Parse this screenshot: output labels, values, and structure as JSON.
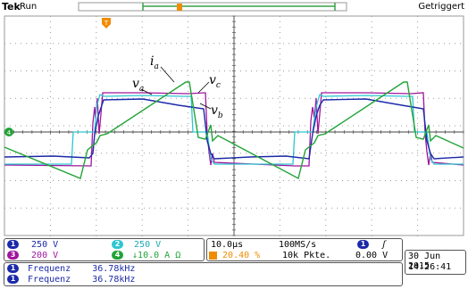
{
  "header": {
    "brand": "Tek",
    "run_state": "Run",
    "trigger_state": "Getriggert"
  },
  "plot": {
    "trace_labels": {
      "ia": "i",
      "ia_sub": "a",
      "va": "v",
      "va_sub": "a",
      "vc": "v",
      "vc_sub": "c",
      "vb": "v",
      "vb_sub": "b"
    },
    "ch4_marker": "4",
    "trigger_marker": "T",
    "colors": {
      "ch1": "#1b2aa8",
      "ch2": "#2cc6d2",
      "ch3": "#a0159e",
      "ch4": "#22a336",
      "trigger": "#f08c00"
    }
  },
  "channels": [
    {
      "id": "1",
      "scale": "250 V"
    },
    {
      "id": "2",
      "scale": "250 V"
    },
    {
      "id": "3",
      "scale": "200 V"
    },
    {
      "id": "4",
      "scale": "↓10.0 A  Ω"
    }
  ],
  "timebase": {
    "time_per_div": "10.0µs",
    "sample_rate": "100MS/s",
    "trigger_source": "1",
    "trigger_slope": "ʃ",
    "trigger_position": "20.40 %",
    "record_length": "10k Pkte.",
    "trigger_level": "0.00 V"
  },
  "datetime": {
    "date": "30 Jun 2015",
    "time": "14:26:41"
  },
  "measurements": [
    {
      "channel": "1",
      "label": "Frequenz",
      "value": "36.78kHz"
    },
    {
      "channel": "1",
      "label": "Frequenz",
      "value": "36.78kHz"
    }
  ]
}
